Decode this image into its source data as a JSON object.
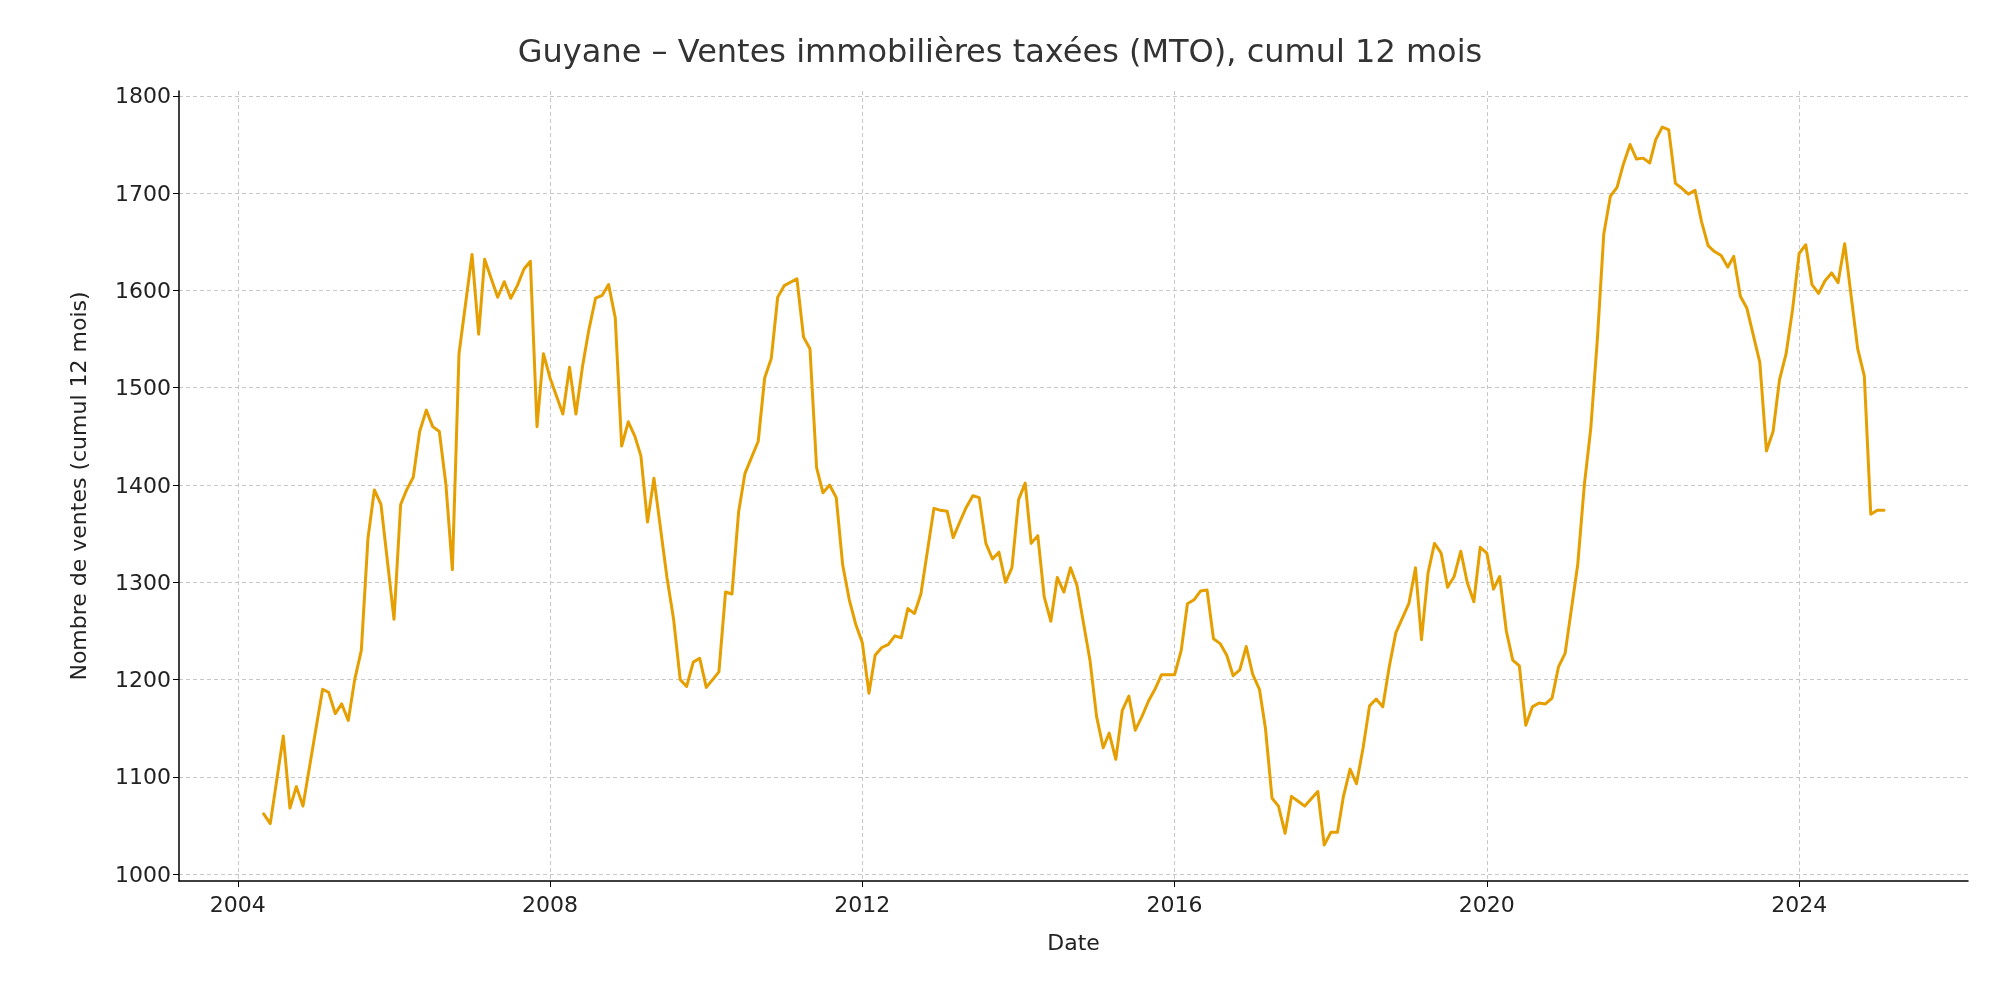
{
  "chart_data": {
    "type": "line",
    "title": "Guyane – Ventes immobilières taxées (MTO), cumul 12 mois",
    "xlabel": "Date",
    "ylabel": "Nombre de ventes (cumul 12 mois)",
    "x": [
      "2004-05",
      "2004-06",
      "2004-08",
      "2004-09",
      "2004-10",
      "2004-11",
      "2005-01",
      "2005-02",
      "2005-03",
      "2005-04",
      "2005-05",
      "2005-06",
      "2005-07",
      "2005-08",
      "2005-09",
      "2005-10",
      "2005-11",
      "2006-01",
      "2006-02",
      "2006-03",
      "2006-04",
      "2006-05",
      "2006-06",
      "2006-07",
      "2006-08",
      "2006-09",
      "2006-10",
      "2006-11",
      "2007-01",
      "2007-02",
      "2007-03",
      "2007-04",
      "2007-05",
      "2007-06",
      "2007-07",
      "2007-08",
      "2007-09",
      "2007-10",
      "2007-11",
      "2007-12",
      "2008-01",
      "2008-03",
      "2008-04",
      "2008-05",
      "2008-06",
      "2008-07",
      "2008-08",
      "2008-09",
      "2008-10",
      "2008-11",
      "2008-12",
      "2009-01",
      "2009-02",
      "2009-03",
      "2009-04",
      "2009-05",
      "2009-07",
      "2009-08",
      "2009-09",
      "2009-10",
      "2009-11",
      "2009-12",
      "2010-01",
      "2010-03",
      "2010-04",
      "2010-05",
      "2010-06",
      "2010-07",
      "2010-09",
      "2010-10",
      "2010-11",
      "2010-12",
      "2011-01",
      "2011-03",
      "2011-04",
      "2011-05",
      "2011-06",
      "2011-07",
      "2011-08",
      "2011-09",
      "2011-10",
      "2011-11",
      "2011-12",
      "2012-01",
      "2012-02",
      "2012-03",
      "2012-04",
      "2012-05",
      "2012-06",
      "2012-07",
      "2012-08",
      "2012-09",
      "2012-10",
      "2012-12",
      "2013-01",
      "2013-02",
      "2013-03",
      "2013-04",
      "2013-05",
      "2013-06",
      "2013-07",
      "2013-08",
      "2013-09",
      "2013-10",
      "2013-11",
      "2013-12",
      "2014-01",
      "2014-02",
      "2014-03",
      "2014-04",
      "2014-05",
      "2014-06",
      "2014-07",
      "2014-08",
      "2014-09",
      "2014-10",
      "2014-12",
      "2015-01",
      "2015-02",
      "2015-03",
      "2015-04",
      "2015-05",
      "2015-06",
      "2015-07",
      "2015-08",
      "2015-09",
      "2015-10",
      "2015-11",
      "2016-01",
      "2016-02",
      "2016-03",
      "2016-04",
      "2016-05",
      "2016-06",
      "2016-07",
      "2016-08",
      "2016-09",
      "2016-10",
      "2016-11",
      "2016-12",
      "2017-01",
      "2017-02",
      "2017-03",
      "2017-04",
      "2017-05",
      "2017-06",
      "2017-07",
      "2017-08",
      "2017-09",
      "2017-11",
      "2017-12",
      "2018-01",
      "2018-02",
      "2018-03",
      "2018-04",
      "2018-05",
      "2018-06",
      "2018-07",
      "2018-08",
      "2018-09",
      "2018-10",
      "2018-11",
      "2018-12",
      "2019-01",
      "2019-02",
      "2019-03",
      "2019-04",
      "2019-05",
      "2019-06",
      "2019-07",
      "2019-08",
      "2019-09",
      "2019-10",
      "2019-11",
      "2019-12",
      "2020-01",
      "2020-02",
      "2020-03",
      "2020-04",
      "2020-05",
      "2020-06",
      "2020-07",
      "2020-08",
      "2020-09",
      "2020-10",
      "2020-11",
      "2020-12",
      "2021-01",
      "2021-03",
      "2021-04",
      "2021-05",
      "2021-06",
      "2021-07",
      "2021-08",
      "2021-09",
      "2021-10",
      "2021-11",
      "2021-12",
      "2022-01",
      "2022-02",
      "2022-03",
      "2022-04",
      "2022-05",
      "2022-06",
      "2022-07",
      "2022-08",
      "2022-09",
      "2022-10",
      "2022-11",
      "2022-12",
      "2023-01",
      "2023-02",
      "2023-03",
      "2023-04",
      "2023-05",
      "2023-07",
      "2023-08",
      "2023-09",
      "2023-10",
      "2023-11",
      "2023-12",
      "2024-01",
      "2024-02",
      "2024-03",
      "2024-04",
      "2024-05",
      "2024-06",
      "2024-07",
      "2024-08",
      "2024-10",
      "2024-11",
      "2024-12",
      "2025-01",
      "2025-02"
    ],
    "series": [
      {
        "color": "#e69f00",
        "values": [
          1062,
          1052,
          1142,
          1068,
          1090,
          1070,
          1150,
          1190,
          1187,
          1165,
          1175,
          1158,
          1200,
          1230,
          1345,
          1395,
          1380,
          1262,
          1380,
          1395,
          1408,
          1455,
          1477,
          1460,
          1455,
          1400,
          1313,
          1535,
          1637,
          1555,
          1632,
          1612,
          1593,
          1609,
          1592,
          1605,
          1622,
          1630,
          1460,
          1535,
          1510,
          1473,
          1521,
          1473,
          1522,
          1560,
          1592,
          1595,
          1606,
          1572,
          1440,
          1465,
          1450,
          1430,
          1362,
          1407,
          1305,
          1262,
          1200,
          1193,
          1218,
          1222,
          1192,
          1208,
          1290,
          1288,
          1372,
          1412,
          1445,
          1510,
          1530,
          1593,
          1605,
          1612,
          1552,
          1540,
          1418,
          1392,
          1400,
          1387,
          1318,
          1282,
          1257,
          1238,
          1186,
          1225,
          1233,
          1236,
          1245,
          1243,
          1273,
          1268,
          1288,
          1376,
          1374,
          1373,
          1346,
          1362,
          1377,
          1389,
          1387,
          1340,
          1324,
          1331,
          1300,
          1315,
          1385,
          1402,
          1340,
          1348,
          1285,
          1260,
          1305,
          1290,
          1315,
          1297,
          1220,
          1162,
          1130,
          1145,
          1118,
          1168,
          1183,
          1148,
          1162,
          1178,
          1190,
          1205,
          1205,
          1230,
          1278,
          1282,
          1291,
          1292,
          1242,
          1237,
          1225,
          1204,
          1210,
          1234,
          1205,
          1190,
          1150,
          1078,
          1070,
          1042,
          1080,
          1075,
          1070,
          1085,
          1030,
          1043,
          1043,
          1080,
          1108,
          1093,
          1130,
          1173,
          1180,
          1172,
          1213,
          1248,
          1263,
          1278,
          1315,
          1241,
          1310,
          1340,
          1330,
          1295,
          1306,
          1332,
          1300,
          1280,
          1336,
          1330,
          1293,
          1306,
          1250,
          1220,
          1214,
          1153,
          1172,
          1176,
          1175,
          1181,
          1213,
          1227,
          1318,
          1400,
          1458,
          1550,
          1658,
          1697,
          1706,
          1730,
          1750,
          1735,
          1736,
          1731,
          1755,
          1768,
          1765,
          1710,
          1705,
          1699,
          1703,
          1671,
          1646,
          1640,
          1636,
          1624,
          1635,
          1594,
          1582,
          1526,
          1435,
          1455,
          1508,
          1535,
          1580,
          1638,
          1647,
          1606,
          1597,
          1610,
          1618,
          1608,
          1648,
          1540,
          1512,
          1370,
          1374,
          1374
        ]
      }
    ],
    "xlim": [
      "2003-04",
      "2026-03"
    ],
    "xticks": [
      "2004",
      "2008",
      "2012",
      "2016",
      "2020",
      "2024"
    ],
    "ylim": [
      993,
      1805
    ],
    "yticks": [
      1000,
      1100,
      1200,
      1300,
      1400,
      1500,
      1600,
      1700,
      1800
    ],
    "grid": true,
    "marker": "none",
    "line_style": "solid"
  }
}
